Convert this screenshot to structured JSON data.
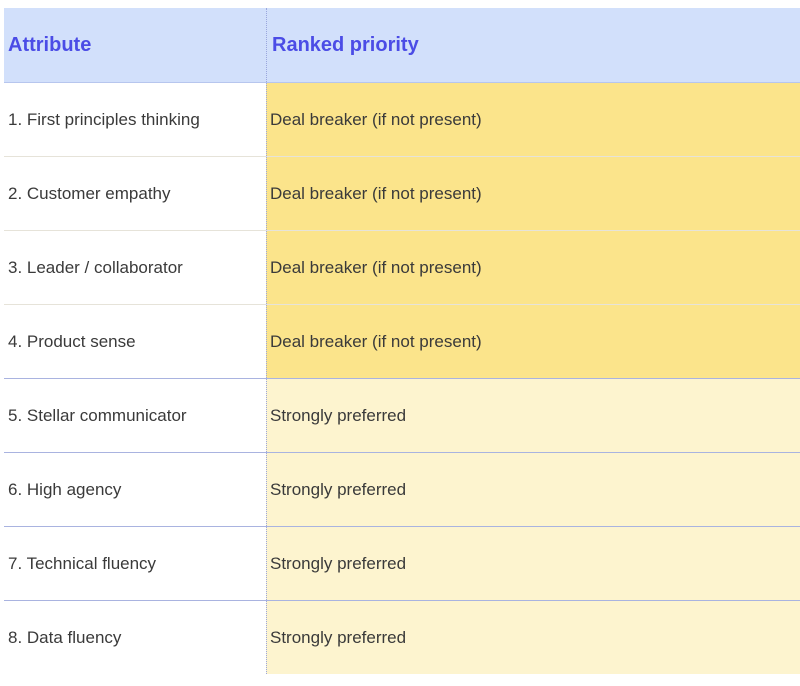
{
  "table": {
    "headers": {
      "attribute": "Attribute",
      "priority": "Ranked priority"
    },
    "rows": [
      {
        "attribute": "1. First principles thinking",
        "priority": "Deal breaker (if not present)",
        "tier": "dealbreaker"
      },
      {
        "attribute": "2. Customer empathy",
        "priority": "Deal breaker (if not present)",
        "tier": "dealbreaker"
      },
      {
        "attribute": "3. Leader / collaborator",
        "priority": "Deal breaker (if not present)",
        "tier": "dealbreaker"
      },
      {
        "attribute": "4. Product sense",
        "priority": "Deal breaker (if not present)",
        "tier": "dealbreaker"
      },
      {
        "attribute": "5. Stellar communicator",
        "priority": "Strongly preferred",
        "tier": "preferred"
      },
      {
        "attribute": "6. High agency",
        "priority": "Strongly preferred",
        "tier": "preferred"
      },
      {
        "attribute": "7. Technical fluency",
        "priority": "Strongly preferred",
        "tier": "preferred"
      },
      {
        "attribute": "8. Data fluency",
        "priority": "Strongly preferred",
        "tier": "preferred"
      }
    ]
  },
  "colors": {
    "header_bg": "#d2e0fb",
    "header_text": "#4b4ce6",
    "dealbreaker_bg": "#fbe48b",
    "preferred_bg": "#fdf4cf"
  }
}
